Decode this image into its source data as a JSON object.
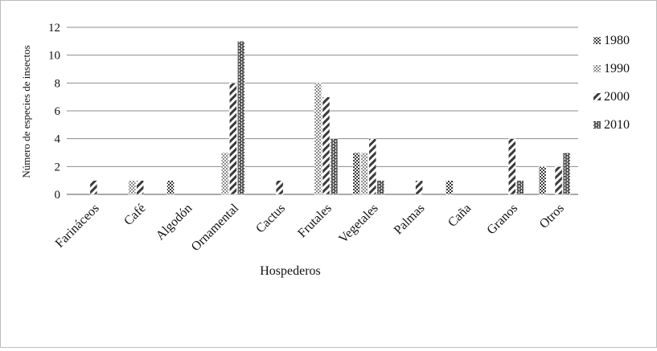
{
  "chart_data": {
    "type": "bar",
    "title": "",
    "xlabel": "Hospederos",
    "ylabel": "Número de especies de insectos",
    "ylim": [
      0,
      12
    ],
    "yticks": [
      0,
      2,
      4,
      6,
      8,
      10,
      12
    ],
    "grid": true,
    "legend_position": "right",
    "categories": [
      "Farináceos",
      "Café",
      "Algodón",
      "Ornamental",
      "Cactus",
      "Frutales",
      "Vegetales",
      "Palmas",
      "Caña",
      "Granos",
      "Otros"
    ],
    "series": [
      {
        "name": "1980",
        "pattern": "checker",
        "values": [
          0,
          0,
          1,
          0,
          0,
          0,
          3,
          0,
          1,
          0,
          2
        ]
      },
      {
        "name": "1990",
        "pattern": "dots",
        "values": [
          0,
          1,
          0,
          3,
          0,
          8,
          3,
          0,
          0,
          0,
          0
        ]
      },
      {
        "name": "2000",
        "pattern": "diagonal",
        "values": [
          1,
          1,
          0,
          8,
          1,
          7,
          4,
          1,
          0,
          4,
          2
        ]
      },
      {
        "name": "2010",
        "pattern": "brick",
        "values": [
          0,
          0,
          0,
          11,
          0,
          4,
          1,
          0,
          0,
          1,
          3
        ]
      }
    ],
    "colors": {
      "bar_fill": "#ffffff",
      "bar_ink": "#444444",
      "gridline": "#8c8c8c",
      "frame": "#bdbdbd"
    }
  }
}
